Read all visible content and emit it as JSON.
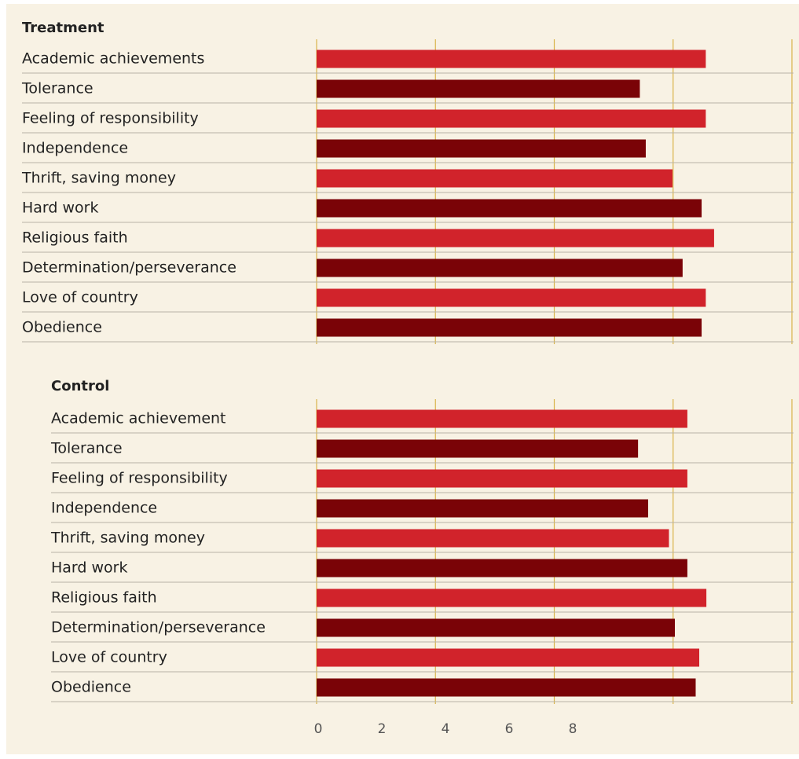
{
  "chart_data": [
    {
      "type": "bar",
      "orientation": "horizontal",
      "title": "Treatment",
      "categories": [
        "Academic achievements",
        "Tolerance",
        "Feeling of responsibility",
        "Independence",
        "Thrift, saving money",
        "Hard work",
        "Religious faith",
        "Determination/perseverance",
        "Love of country",
        "Obedience"
      ],
      "values": [
        6.55,
        5.44,
        6.55,
        5.54,
        5.99,
        6.48,
        6.69,
        6.16,
        6.55,
        6.48
      ],
      "colors": [
        "#d1232b",
        "#7a0307"
      ],
      "xlim": [
        0,
        8
      ],
      "xticks": [
        0,
        2,
        4,
        6,
        8
      ],
      "grid": true
    },
    {
      "type": "bar",
      "orientation": "horizontal",
      "title": "Control",
      "categories": [
        "Academic achievement",
        "Tolerance",
        "Feeling of responsibility",
        "Independence",
        "Thrift, saving money",
        "Hard work",
        "Religious faith",
        "Determination/perseverance",
        "Love of country",
        "Obedience"
      ],
      "values": [
        6.24,
        5.41,
        6.24,
        5.58,
        5.93,
        6.24,
        6.56,
        6.03,
        6.44,
        6.38
      ],
      "colors": [
        "#d1232b",
        "#7a0307"
      ],
      "xlim": [
        0,
        8
      ],
      "xticks": [
        0,
        2,
        4,
        6,
        8
      ],
      "grid": true
    }
  ]
}
